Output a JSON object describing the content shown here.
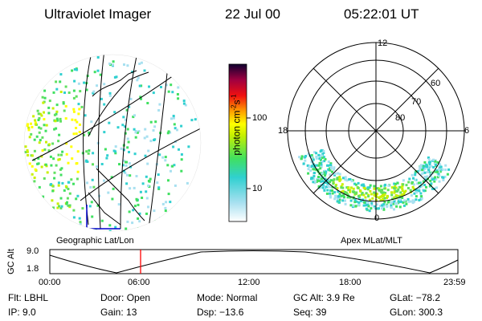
{
  "header": {
    "instrument": "Ultraviolet Imager",
    "date": "22 Jul 00",
    "time": "05:22:01 UT"
  },
  "colorbar": {
    "unit": "photon cm",
    "unit_sup1": "-2",
    "unit_mid": "s",
    "unit_sup2": "-1",
    "ticks": [
      "100",
      "10"
    ]
  },
  "geo_panel": {
    "caption": "Geographic Lat/Lon"
  },
  "polar_panel": {
    "caption": "Apex MLat/MLT",
    "mlt_labels": [
      "12",
      "18",
      "6",
      "0"
    ],
    "lat_labels": [
      "60",
      "70",
      "80"
    ]
  },
  "altitude_panel": {
    "ylabel": "GC Alt",
    "yticks": [
      "9.0",
      "1.8"
    ],
    "xticks": [
      "00:00",
      "06:00",
      "12:00",
      "18:00",
      "23:59"
    ],
    "marker_time": "05:22"
  },
  "info": {
    "flt_label": "Flt:",
    "flt_value": "LBHL",
    "ip_label": "IP:",
    "ip_value": "9.0",
    "door_label": "Door:",
    "door_value": "Open",
    "gain_label": "Gain:",
    "gain_value": "13",
    "mode_label": "Mode:",
    "mode_value": "Normal",
    "dsp_label": "Dsp:",
    "dsp_value": "−13.6",
    "gcalt_label": "GC Alt:",
    "gcalt_value": "3.9 Re",
    "seq_label": "Seq:",
    "seq_value": "39",
    "glat_label": "GLat:",
    "glat_value": "−78.2",
    "glon_label": "GLon:",
    "glon_value": "300.3"
  },
  "colors": {
    "marker": "#ff0000",
    "line": "#000000",
    "map_blue": "#0000cc"
  }
}
